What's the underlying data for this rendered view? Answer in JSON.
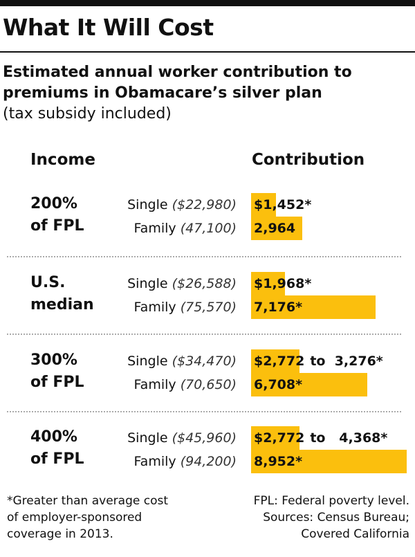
{
  "title": "What It Will Cost",
  "subtitle": "Estimated annual worker contribution to premiums in Obamacare’s silver plan",
  "subtitle_line1": "Estimated annual worker contribution to",
  "subtitle_line2": "premiums in Obamacare’s silver plan",
  "subtitle_note": "(tax subsidy included)",
  "headers": {
    "income": "Income",
    "contribution": "Contribution"
  },
  "groups": [
    {
      "label": [
        "200%",
        "of FPL"
      ],
      "rows": [
        {
          "type": "Single",
          "income": "($22,980)",
          "value_label": "$1,452*",
          "range_label": ""
        },
        {
          "type": "Family",
          "income": "(47,100)",
          "value_label": "2,964",
          "range_label": ""
        }
      ]
    },
    {
      "label": [
        "U.S.",
        "median"
      ],
      "rows": [
        {
          "type": "Single",
          "income": "($26,588)",
          "value_label": "$1,968*",
          "range_label": ""
        },
        {
          "type": "Family",
          "income": "(75,570)",
          "value_label": "7,176*",
          "range_label": ""
        }
      ]
    },
    {
      "label": [
        "300%",
        "of FPL"
      ],
      "rows": [
        {
          "type": "Single",
          "income": "($34,470)",
          "value_label": "$2,772",
          "range_label": "to  3,276*"
        },
        {
          "type": "Family",
          "income": "(70,650)",
          "value_label": "6,708*",
          "range_label": ""
        }
      ]
    },
    {
      "label": [
        "400%",
        "of FPL"
      ],
      "rows": [
        {
          "type": "Single",
          "income": "($45,960)",
          "value_label": "$2,772",
          "range_label": "to   4,368*"
        },
        {
          "type": "Family",
          "income": "(94,200)",
          "value_label": "8,952*",
          "range_label": ""
        }
      ]
    }
  ],
  "footnote": "*Greater than average cost of employer-sponsored coverage in 2013.",
  "footnote_lines": [
    "*Greater than average cost",
    "of employer-sponsored",
    "coverage in 2013."
  ],
  "source": "FPL: Federal poverty level. Sources: Census Bureau; Covered California",
  "source_lines": [
    "FPL: Federal poverty level.",
    "Sources: Census Bureau;",
    "Covered California"
  ],
  "colors": {
    "bar": "#fbbf0d",
    "text": "#111111",
    "rule": "#111111",
    "divider": "#aaaaaa"
  },
  "chart_data": {
    "type": "bar",
    "orientation": "horizontal",
    "title": "What It Will Cost",
    "subtitle": "Estimated annual worker contribution to premiums in Obamacare’s silver plan (tax subsidy included)",
    "xlabel": "Contribution",
    "ylabel": "Income",
    "xlim": [
      0,
      9000
    ],
    "grid": false,
    "legend": "none",
    "categories": [
      "200% of FPL Single ($22,980)",
      "200% of FPL Family (47,100)",
      "U.S. median Single ($26,588)",
      "U.S. median Family (75,570)",
      "300% of FPL Single ($34,470)",
      "300% of FPL Family (70,650)",
      "400% of FPL Single ($45,960)",
      "400% of FPL Family (94,200)"
    ],
    "values": [
      1452,
      2964,
      1968,
      7176,
      2772,
      6708,
      2772,
      8952
    ],
    "range_max": [
      null,
      null,
      null,
      null,
      3276,
      null,
      4368,
      null
    ],
    "annotation": "*Greater than average cost of employer-sponsored coverage in 2013."
  }
}
